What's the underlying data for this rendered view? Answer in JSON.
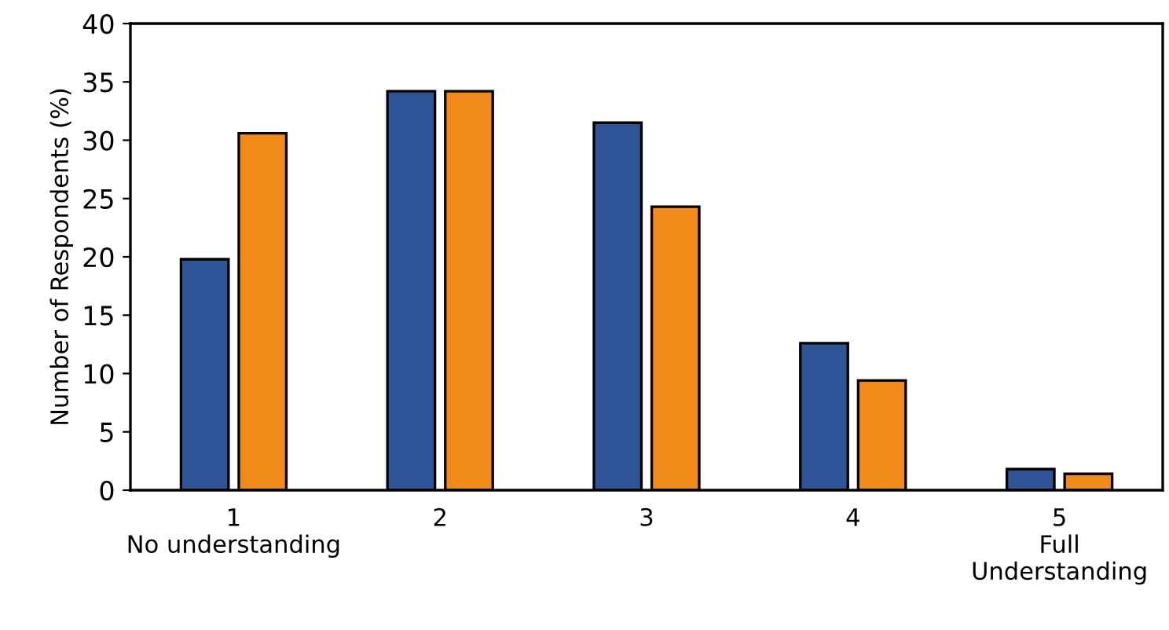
{
  "chart_data": {
    "type": "bar",
    "ylabel": "Number of Respondents (%)",
    "categories": [
      "1\nNo understanding",
      "2",
      "3",
      "4",
      "5\nFull\nUnderstanding"
    ],
    "series": [
      {
        "color": "#2f5597",
        "values": [
          19.8,
          34.2,
          31.5,
          12.6,
          1.8
        ]
      },
      {
        "color": "#f28a1a",
        "values": [
          30.6,
          34.2,
          24.3,
          9.4,
          1.4
        ]
      }
    ],
    "ylim": [
      0,
      40
    ],
    "yticks": [
      0,
      5,
      10,
      15,
      20,
      25,
      30,
      35,
      40
    ],
    "grid": false,
    "legend": false
  }
}
